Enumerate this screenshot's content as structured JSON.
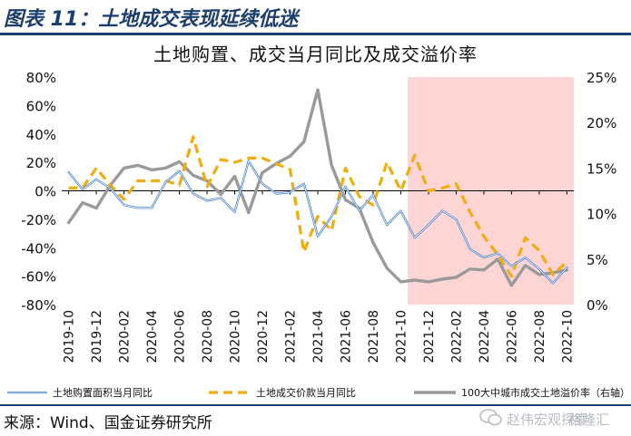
{
  "header": {
    "figure_title": "图表 11：土地成交表现延续低迷"
  },
  "chart_data": {
    "type": "line",
    "title": "土地购置、成交当月同比及成交溢价率",
    "x": [
      "2019-10",
      "2019-11",
      "2019-12",
      "2020-01",
      "2020-02",
      "2020-03",
      "2020-04",
      "2020-05",
      "2020-06",
      "2020-07",
      "2020-08",
      "2020-09",
      "2020-10",
      "2020-11",
      "2020-12",
      "2021-01",
      "2021-02",
      "2021-03",
      "2021-04",
      "2021-05",
      "2021-06",
      "2021-07",
      "2021-08",
      "2021-09",
      "2021-10",
      "2021-11",
      "2021-12",
      "2022-01",
      "2022-02",
      "2022-03",
      "2022-04",
      "2022-05",
      "2022-06",
      "2022-07",
      "2022-08",
      "2022-09",
      "2022-10"
    ],
    "x_tick_labels": [
      "2019-10",
      "2019-12",
      "2020-02",
      "2020-04",
      "2020-06",
      "2020-08",
      "2020-10",
      "2020-12",
      "2021-02",
      "2021-04",
      "2021-06",
      "2021-08",
      "2021-10",
      "2021-12",
      "2022-02",
      "2022-04",
      "2022-06",
      "2022-08",
      "2022-10"
    ],
    "y_left_ticks": [
      "80%",
      "60%",
      "40%",
      "20%",
      "0%",
      "-20%",
      "-40%",
      "-60%",
      "-80%"
    ],
    "y_right_ticks": [
      "25%",
      "20%",
      "15%",
      "10%",
      "5%",
      "0%"
    ],
    "ylim_left": [
      -80,
      80
    ],
    "ylim_right": [
      0,
      25
    ],
    "shaded_region": {
      "from": "2021-11",
      "to": "2022-10",
      "color": "#fdd5d5"
    },
    "series": [
      {
        "name": "土地购置面积当月同比",
        "axis": "left",
        "style": "solid",
        "color": "#3a78c8",
        "values": [
          13,
          1,
          8,
          2,
          -10,
          -12,
          -12,
          6,
          14,
          -2,
          -7,
          -5,
          -15,
          21,
          5,
          -2,
          -1,
          5,
          -32,
          -18,
          3,
          -14,
          -3,
          -24,
          -14,
          -33,
          -24,
          -14,
          -20,
          -41,
          -47,
          -44,
          -53,
          -47,
          -55,
          -65,
          -54
        ]
      },
      {
        "name": "土地成交价款当月同比",
        "axis": "left",
        "style": "dashed",
        "color": "#f2ac0c",
        "values": [
          2,
          2,
          16,
          4,
          -6,
          7,
          7,
          7,
          4,
          38,
          3,
          22,
          20,
          23,
          23,
          19,
          15,
          -43,
          -18,
          -28,
          16,
          -4,
          -10,
          20,
          0,
          25,
          0,
          2,
          5,
          -15,
          -32,
          -45,
          -60,
          -33,
          -42,
          -59,
          -50
        ]
      },
      {
        "name": "100大中城市成交土地溢价率（右轴）",
        "axis": "right",
        "style": "solid",
        "color": "#9a9a9a",
        "values": [
          9.0,
          11.2,
          10.6,
          13.1,
          15.0,
          15.3,
          14.8,
          15.0,
          15.7,
          14.2,
          13.6,
          12.1,
          14.1,
          10.1,
          14.5,
          15.5,
          16.3,
          17.9,
          23.6,
          15.3,
          11.5,
          10.6,
          6.8,
          4.0,
          2.5,
          2.7,
          2.5,
          2.8,
          3.0,
          3.9,
          3.8,
          5.0,
          2.1,
          4.3,
          3.3,
          3.5,
          3.8
        ]
      }
    ],
    "legend_position": "bottom"
  },
  "source": {
    "text": "来源：Wind、国金证券研究所"
  },
  "watermark": {
    "text": "赵伟宏观探索",
    "logo_text": "格隆汇"
  }
}
